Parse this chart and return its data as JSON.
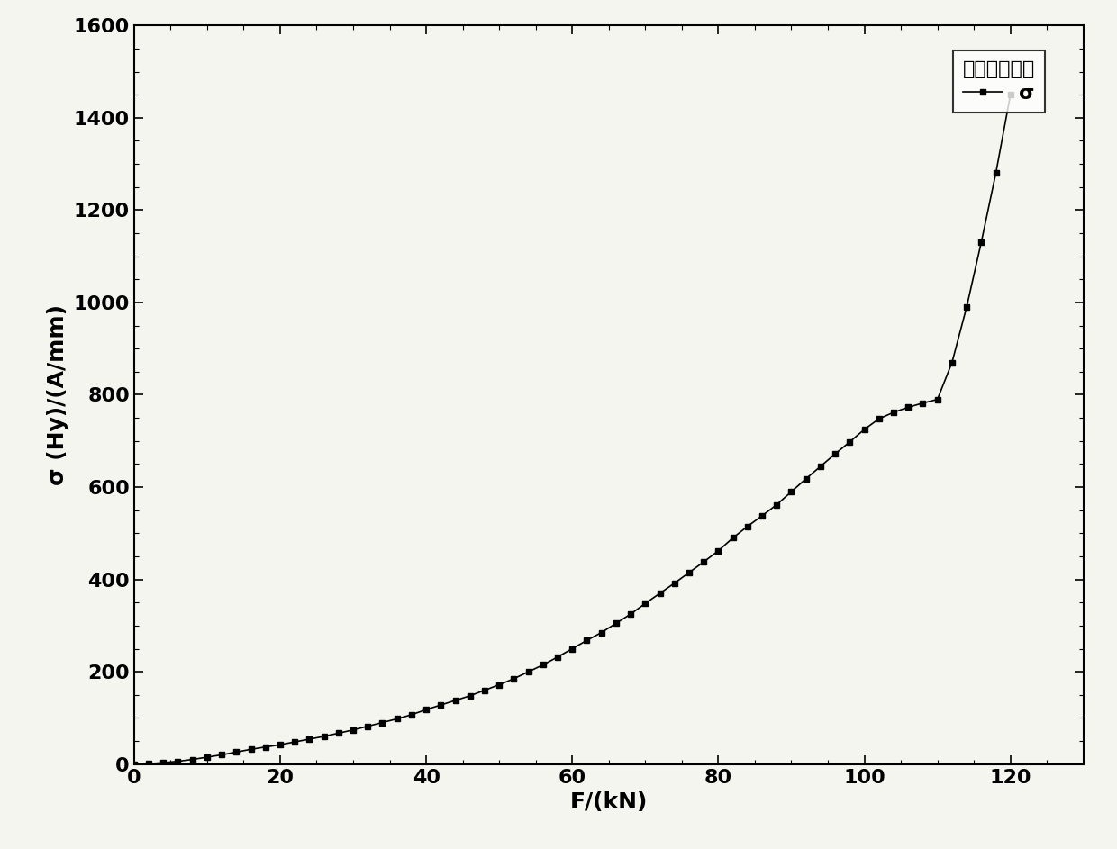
{
  "x": [
    0,
    2,
    4,
    6,
    8,
    10,
    12,
    14,
    16,
    18,
    20,
    22,
    24,
    26,
    28,
    30,
    32,
    34,
    36,
    38,
    40,
    42,
    44,
    46,
    48,
    50,
    52,
    54,
    56,
    58,
    60,
    62,
    64,
    66,
    68,
    70,
    72,
    74,
    76,
    78,
    80,
    82,
    84,
    86,
    88,
    90,
    92,
    94,
    96,
    98,
    100,
    102,
    104,
    106,
    108,
    110,
    112,
    114,
    116,
    118,
    120
  ],
  "y": [
    0,
    1,
    3,
    6,
    10,
    15,
    20,
    26,
    32,
    37,
    42,
    48,
    54,
    60,
    67,
    74,
    82,
    90,
    98,
    107,
    118,
    128,
    138,
    148,
    160,
    172,
    185,
    200,
    215,
    232,
    250,
    268,
    285,
    305,
    325,
    348,
    370,
    392,
    415,
    438,
    462,
    490,
    515,
    538,
    562,
    590,
    618,
    645,
    672,
    698,
    725,
    748,
    762,
    773,
    782,
    790,
    870,
    990,
    1130,
    1280,
    1450
  ],
  "line_color": "#000000",
  "marker": "s",
  "markersize": 4,
  "linewidth": 1.2,
  "xlabel": "F/(kN)",
  "ylabel": "σ (Hy)/(A/mm)",
  "xlim": [
    0,
    130
  ],
  "ylim": [
    0,
    1600
  ],
  "xticks": [
    0,
    20,
    40,
    60,
    80,
    100,
    120
  ],
  "yticks": [
    0,
    200,
    400,
    600,
    800,
    1000,
    1200,
    1400,
    1600
  ],
  "legend_title": "磁感应标准差",
  "legend_label": "σ",
  "axis_fontsize": 18,
  "tick_fontsize": 16,
  "legend_fontsize": 16,
  "background_color": "#f5f5f0"
}
